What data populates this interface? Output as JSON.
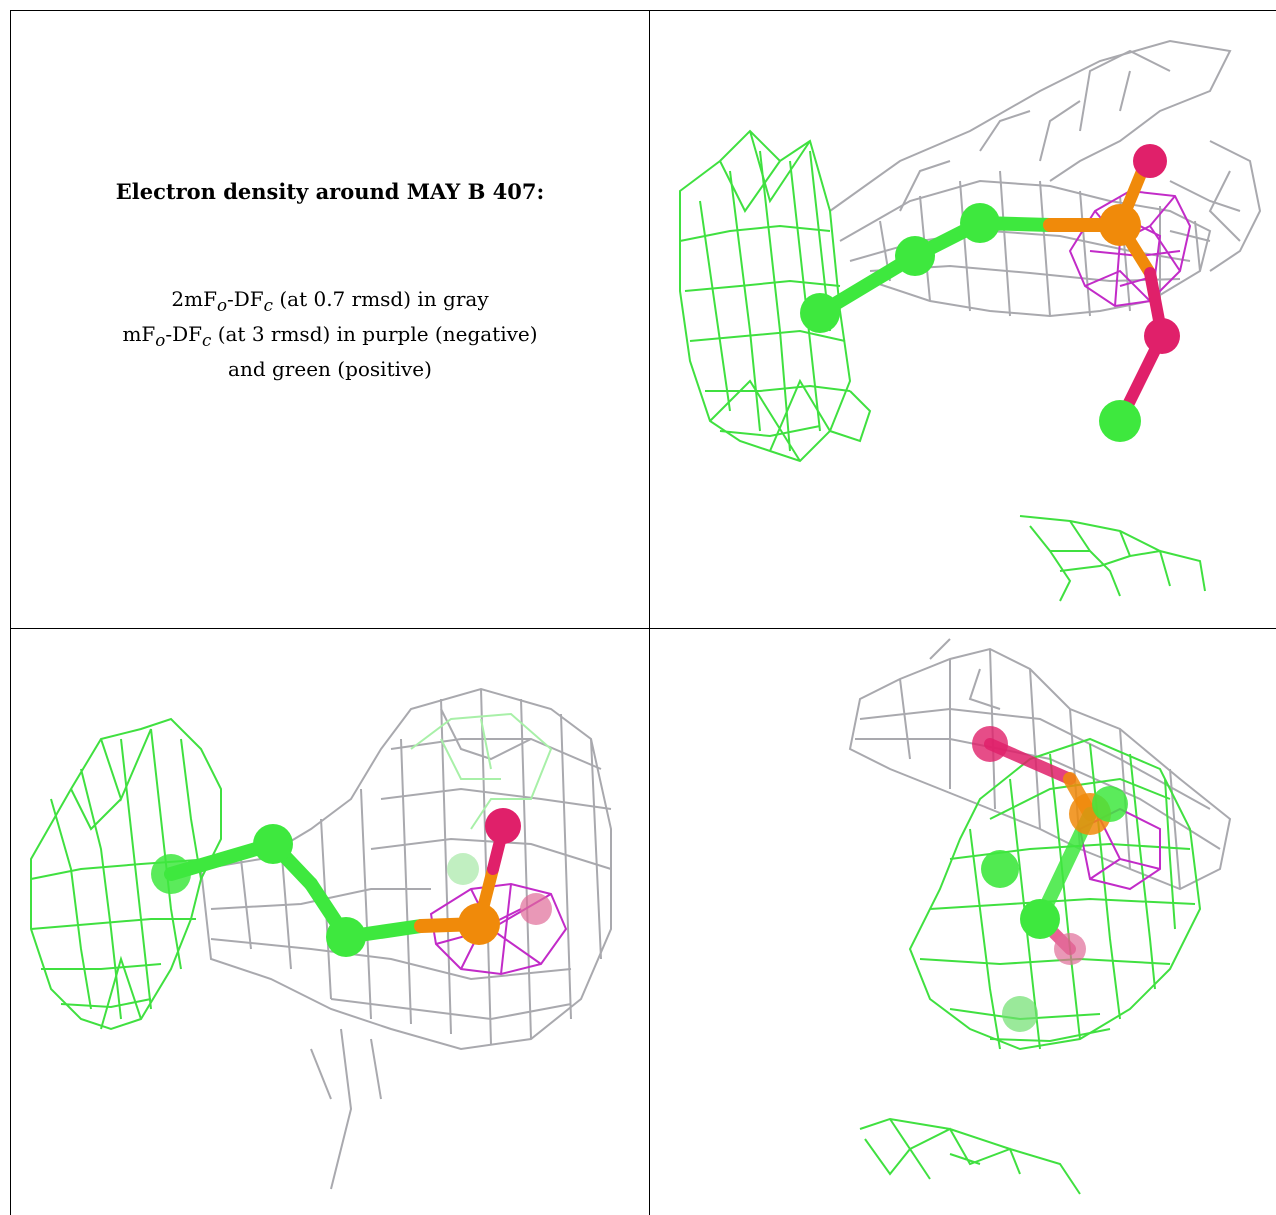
{
  "caption": {
    "title": "Electron density around MAY B 407:",
    "line1_prefix": "2mF",
    "line1_sub1": "o",
    "line1_mid": "-DF",
    "line1_sub2": "c",
    "line1_suffix": " (at 0.7 rmsd) in gray",
    "line2_prefix": "mF",
    "line2_sub1": "o",
    "line2_mid": "-DF",
    "line2_sub2": "c",
    "line2_suffix": " (at 3 rmsd) in purple (negative)",
    "line3": "and green (positive)"
  },
  "colors": {
    "gray_mesh": "#a9a9ae",
    "negative_mesh": "#c22bc8",
    "positive_mesh": "#40e040",
    "carbon_atom": "#3ee83e",
    "phosphorus_atom": "#f08a0a",
    "oxygen_atom": "#e0206a"
  },
  "panels": [
    {
      "name": "view-1"
    },
    {
      "name": "view-2"
    },
    {
      "name": "view-3"
    }
  ]
}
